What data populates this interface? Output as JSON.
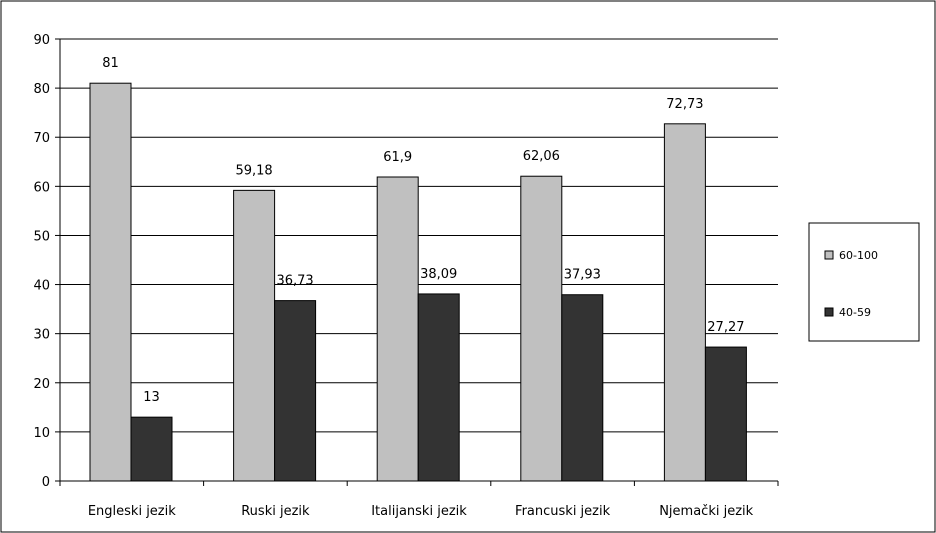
{
  "chart_data": {
    "type": "bar",
    "categories": [
      "Engleski jezik",
      "Ruski jezik",
      "Italijanski jezik",
      "Francuski jezik",
      "Njemački jezik"
    ],
    "series": [
      {
        "name": "60-100",
        "values": [
          81,
          59.18,
          61.9,
          62.06,
          72.73
        ],
        "labels": [
          "81",
          "59,18",
          "61,9",
          "62,06",
          "72,73"
        ],
        "color": "#c0c0c0"
      },
      {
        "name": "40-59",
        "values": [
          13,
          36.73,
          38.09,
          37.93,
          27.27
        ],
        "labels": [
          "13",
          "36,73",
          "38,09",
          "37,93",
          "27,27"
        ],
        "color": "#333333"
      }
    ],
    "ylim": [
      0,
      90
    ],
    "yticks": [
      0,
      10,
      20,
      30,
      40,
      50,
      60,
      70,
      80,
      90
    ],
    "ytick_labels": [
      "0",
      "10",
      "20",
      "30",
      "40",
      "50",
      "60",
      "70",
      "80",
      "90"
    ],
    "grid": true,
    "legend_position": "right"
  }
}
